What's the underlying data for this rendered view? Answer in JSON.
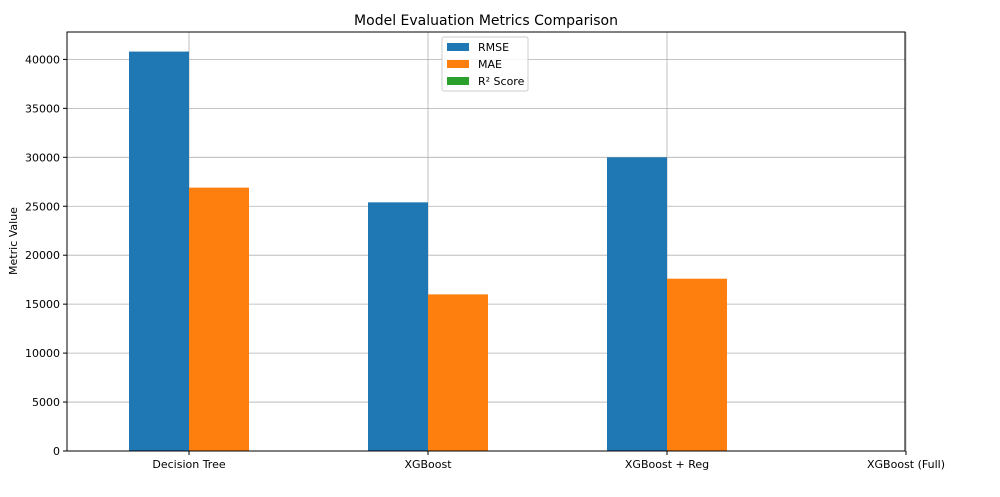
{
  "chart_data": {
    "type": "bar",
    "title": "Model Evaluation Metrics Comparison",
    "xlabel": "",
    "ylabel": "Metric Value",
    "categories": [
      "Decision Tree",
      "XGBoost",
      "XGBoost + Reg",
      "XGBoost (Full)"
    ],
    "series": [
      {
        "name": "RMSE",
        "color": "#1f77b4",
        "values": [
          40800,
          25400,
          30000,
          0
        ]
      },
      {
        "name": "MAE",
        "color": "#ff7f0e",
        "values": [
          26900,
          16000,
          17600,
          0
        ]
      },
      {
        "name": "R² Score",
        "color": "#2ca02c",
        "values": [
          0.9,
          0.95,
          0.93,
          0
        ]
      }
    ],
    "ylim": [
      0,
      42800
    ],
    "yticks": [
      0,
      5000,
      10000,
      15000,
      20000,
      25000,
      30000,
      35000,
      40000
    ],
    "grid": true,
    "legend_position": "top-center"
  }
}
